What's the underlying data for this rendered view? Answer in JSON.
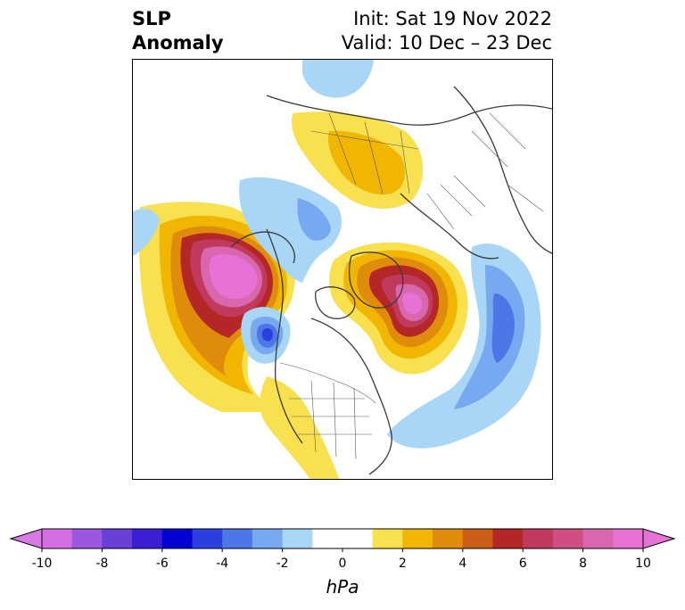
{
  "title": {
    "variable_line1": "SLP",
    "variable_line2": "Anomaly",
    "init": "Init: Sat 19 Nov 2022",
    "valid": "Valid: 10 Dec – 23 Dec"
  },
  "colorbar": {
    "unit": "hPa",
    "min": -10,
    "max": 10,
    "step": 1,
    "ticks": [
      "-10",
      "-8",
      "-6",
      "-4",
      "-2",
      "0",
      "2",
      "4",
      "6",
      "8",
      "10"
    ],
    "colors": [
      "#d36fe3",
      "#9b57e0",
      "#6a3fd8",
      "#3b1fd5",
      "#0000d0",
      "#2a3fdd",
      "#4f76e6",
      "#77a9f0",
      "#a9d6f7",
      "#ffffff",
      "#ffffff",
      "#f9e04f",
      "#f1b602",
      "#df8c0c",
      "#cb5e17",
      "#b52626",
      "#c03a5e",
      "#cf4f82",
      "#d967ad",
      "#e672d6"
    ],
    "under_color": "#d77ae6",
    "over_color": "#e672d6"
  },
  "map": {
    "projection": "north-polar-stereographic",
    "field": "sea-level-pressure-anomaly",
    "features": [
      {
        "name": "north-pacific-high",
        "sign": "positive",
        "peak_hpa": 10
      },
      {
        "name": "greenland-iceland-high",
        "sign": "positive",
        "peak_hpa": 9
      },
      {
        "name": "gulf-of-alaska-low",
        "sign": "negative",
        "peak_hpa": -6
      },
      {
        "name": "north-atlantic-low",
        "sign": "negative",
        "peak_hpa": -5
      },
      {
        "name": "siberia-high",
        "sign": "positive",
        "peak_hpa": 3
      }
    ]
  }
}
